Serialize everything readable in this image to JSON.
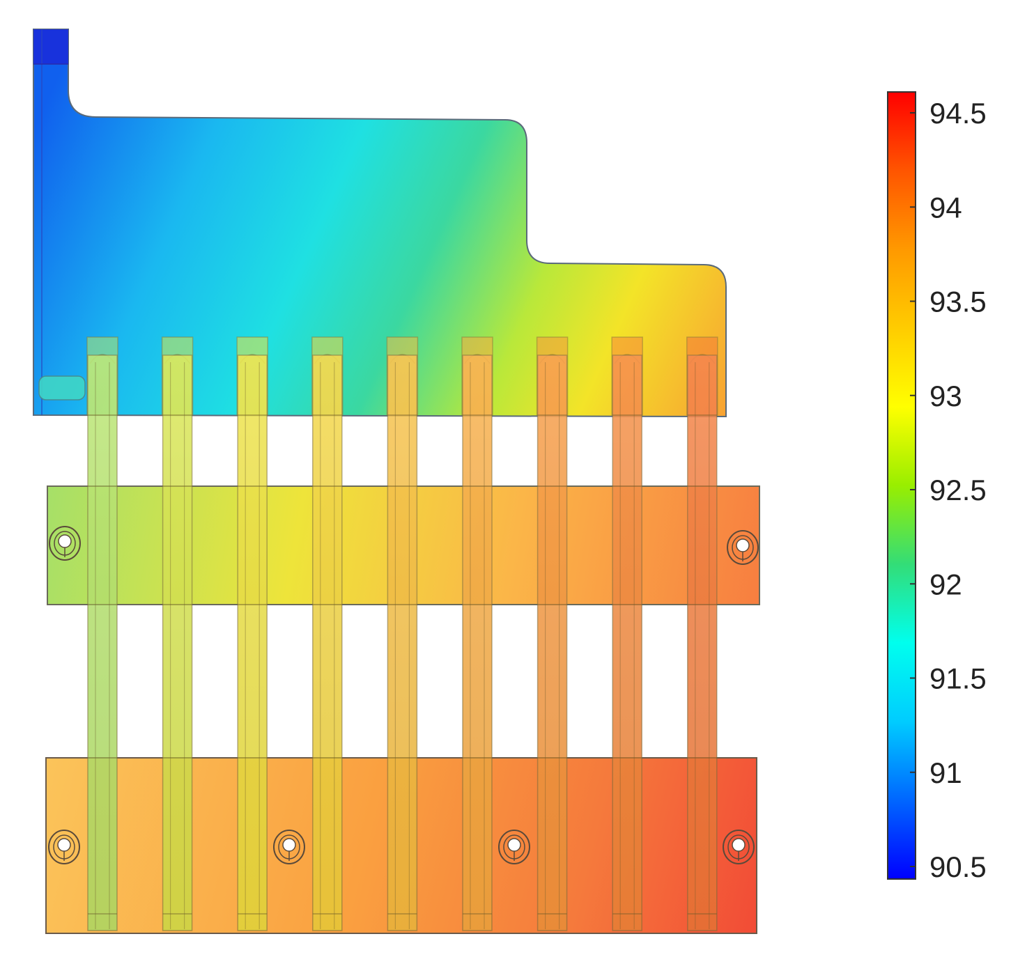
{
  "figure": {
    "title": "",
    "subtitle": ""
  },
  "model": {
    "tube_count": 9
  },
  "colorbar": {
    "min": 90.5,
    "max": 94.5,
    "ticks": [
      "94.5",
      "94",
      "93.5",
      "93",
      "92.5",
      "92",
      "91.5",
      "91",
      "90.5"
    ],
    "tick_values": [
      94.5,
      94.0,
      93.5,
      93.0,
      92.5,
      92.0,
      91.5,
      91.0,
      90.5
    ],
    "unit_label": "",
    "colormap": [
      "#0000ff",
      "#0066ff",
      "#00ccff",
      "#00ffee",
      "#33dd77",
      "#99ee00",
      "#ffff00",
      "#ffcc00",
      "#ff9900",
      "#ff5500",
      "#ff0000"
    ]
  }
}
